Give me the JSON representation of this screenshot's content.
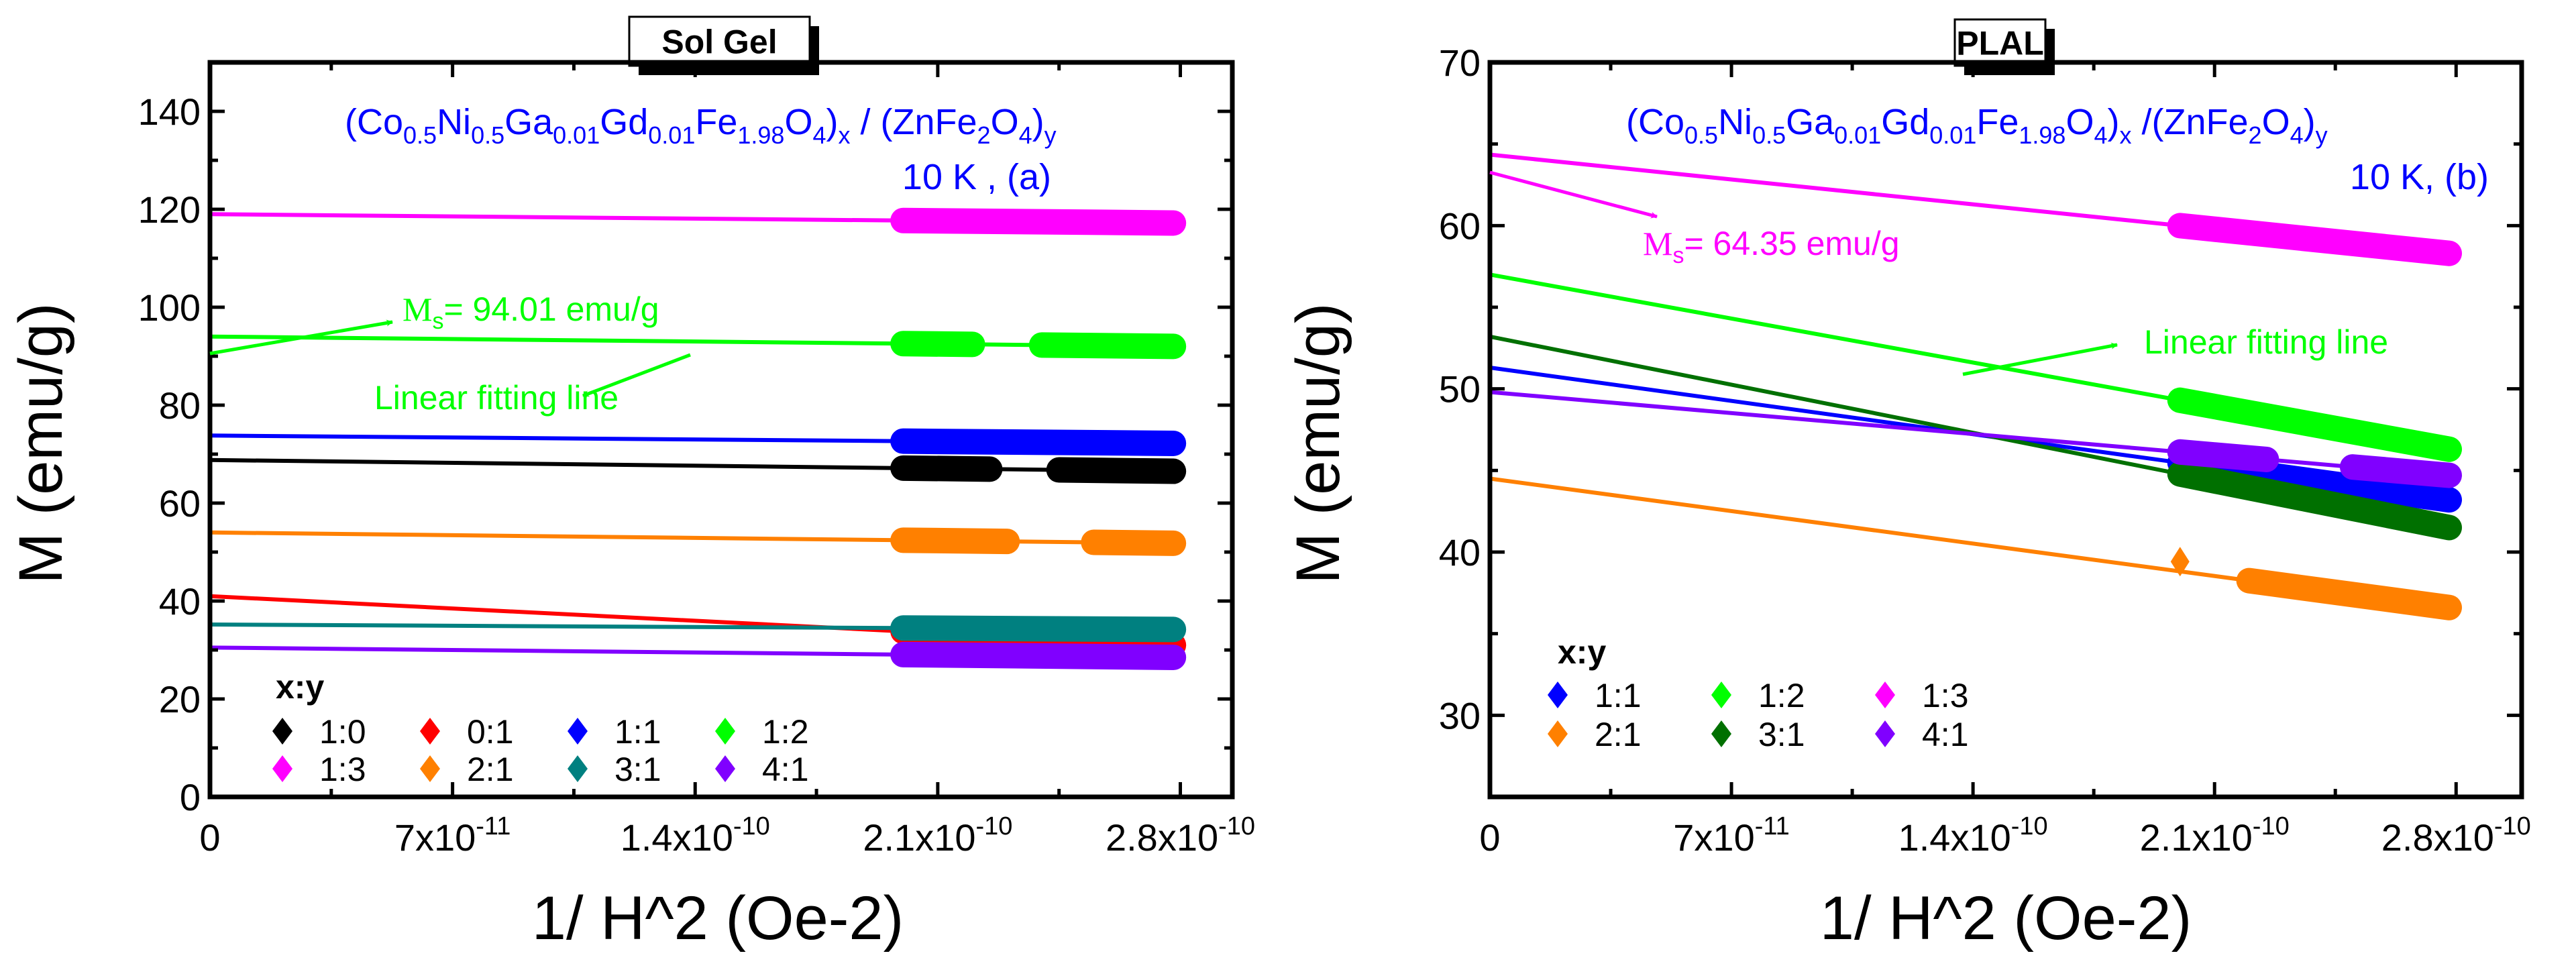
{
  "chart_data": [
    {
      "type": "line",
      "panel": "a",
      "title": "Sol Gel",
      "formula": [
        {
          "t": "(Co",
          "s": 0
        },
        {
          "t": "0.5",
          "s": 1
        },
        {
          "t": "Ni",
          "s": 0
        },
        {
          "t": "0.5",
          "s": 1
        },
        {
          "t": "Ga",
          "s": 0
        },
        {
          "t": "0.01",
          "s": 1
        },
        {
          "t": "Gd",
          "s": 0
        },
        {
          "t": "0.01",
          "s": 1
        },
        {
          "t": "Fe",
          "s": 0
        },
        {
          "t": "1.98",
          "s": 1
        },
        {
          "t": "O",
          "s": 0
        },
        {
          "t": "4",
          "s": 1
        },
        {
          "t": ")",
          "s": 0
        },
        {
          "t": "x",
          "s": 1
        },
        {
          "t": " / (ZnFe",
          "s": 0
        },
        {
          "t": "2",
          "s": 1
        },
        {
          "t": "O",
          "s": 0
        },
        {
          "t": "4",
          "s": 1
        },
        {
          "t": ")",
          "s": 0
        },
        {
          "t": "y",
          "s": 1
        }
      ],
      "condition": "10 K , (a)",
      "ms_annotation": {
        "prefix": "M",
        "sub": "s",
        "text": "= 94.01 emu/g",
        "color": "#00ff00"
      },
      "fit_annotation": {
        "text": "Linear fitting line",
        "color": "#00ff00"
      },
      "xlabel": "1/ H^2 (Oe-2)",
      "ylabel": "M (emu/g)",
      "xlim": [
        0,
        2.95e-10
      ],
      "ylim": [
        0,
        150
      ],
      "xticks": [
        {
          "v": 0,
          "label": "0"
        },
        {
          "v": 7e-11,
          "label": "7x10",
          "exp": "-11"
        },
        {
          "v": 1.4e-10,
          "label": "1.4x10",
          "exp": "-10"
        },
        {
          "v": 2.1e-10,
          "label": "2.1x10",
          "exp": "-10"
        },
        {
          "v": 2.8e-10,
          "label": "2.8x10",
          "exp": "-10"
        }
      ],
      "yticks": [
        0,
        20,
        40,
        60,
        80,
        100,
        120,
        140
      ],
      "legend_title": "x:y",
      "legend_columns": 4,
      "series": [
        {
          "name": "1:0",
          "color": "#000000",
          "intercept": 68.8,
          "end": 66.5,
          "bands": [
            [
              2e-10,
              2.25e-10
            ],
            [
              2.45e-10,
              2.78e-10
            ]
          ]
        },
        {
          "name": "0:1",
          "color": "#ff0000",
          "intercept": 41.0,
          "end": 31.0,
          "bands": [
            [
              2e-10,
              2.78e-10
            ]
          ]
        },
        {
          "name": "1:1",
          "color": "#0000ff",
          "intercept": 73.8,
          "end": 72.2,
          "bands": [
            [
              2e-10,
              2.78e-10
            ]
          ]
        },
        {
          "name": "1:2",
          "color": "#00ff00",
          "intercept": 94.01,
          "end": 92.0,
          "bands": [
            [
              2e-10,
              2.2e-10
            ],
            [
              2.4e-10,
              2.78e-10
            ]
          ]
        },
        {
          "name": "1:3",
          "color": "#ff00ff",
          "intercept": 119.0,
          "end": 117.2,
          "bands": [
            [
              2e-10,
              2.78e-10
            ]
          ]
        },
        {
          "name": "2:1",
          "color": "#ff8000",
          "intercept": 54.0,
          "end": 51.8,
          "bands": [
            [
              2e-10,
              2.3e-10
            ],
            [
              2.55e-10,
              2.78e-10
            ]
          ]
        },
        {
          "name": "3:1",
          "color": "#008080",
          "intercept": 35.2,
          "end": 34.2,
          "bands": [
            [
              2e-10,
              2.78e-10
            ]
          ]
        },
        {
          "name": "4:1",
          "color": "#8000ff",
          "intercept": 30.5,
          "end": 28.5,
          "bands": [
            [
              2e-10,
              2.78e-10
            ]
          ]
        }
      ]
    },
    {
      "type": "line",
      "panel": "b",
      "title": "PLAL",
      "formula": [
        {
          "t": "(Co",
          "s": 0
        },
        {
          "t": "0.5",
          "s": 1
        },
        {
          "t": "Ni",
          "s": 0
        },
        {
          "t": "0.5",
          "s": 1
        },
        {
          "t": "Ga",
          "s": 0
        },
        {
          "t": "0.01",
          "s": 1
        },
        {
          "t": "Gd",
          "s": 0
        },
        {
          "t": "0.01",
          "s": 1
        },
        {
          "t": "Fe",
          "s": 0
        },
        {
          "t": "1.98",
          "s": 1
        },
        {
          "t": "O",
          "s": 0
        },
        {
          "t": "4",
          "s": 1
        },
        {
          "t": ")",
          "s": 0
        },
        {
          "t": "x",
          "s": 1
        },
        {
          "t": " /(ZnFe",
          "s": 0
        },
        {
          "t": "2",
          "s": 1
        },
        {
          "t": "O",
          "s": 0
        },
        {
          "t": "4",
          "s": 1
        },
        {
          "t": ")",
          "s": 0
        },
        {
          "t": "y",
          "s": 1
        }
      ],
      "condition": "10 K, (b)",
      "ms_annotation": {
        "prefix": "M",
        "sub": "s",
        "text": "= 64.35 emu/g",
        "color": "#ff00ff"
      },
      "fit_annotation": {
        "text": "Linear fitting line",
        "color": "#00ff00"
      },
      "xlabel": "1/ H^2 (Oe-2)",
      "ylabel": "M (emu/g)",
      "xlim": [
        0,
        2.99e-10
      ],
      "ylim": [
        25,
        70
      ],
      "xticks": [
        {
          "v": 0,
          "label": "0"
        },
        {
          "v": 7e-11,
          "label": "7x10",
          "exp": "-11"
        },
        {
          "v": 1.4e-10,
          "label": "1.4x10",
          "exp": "-10"
        },
        {
          "v": 2.1e-10,
          "label": "2.1x10",
          "exp": "-10"
        },
        {
          "v": 2.8e-10,
          "label": "2.8x10",
          "exp": "-10"
        }
      ],
      "yticks": [
        30,
        40,
        50,
        60,
        70
      ],
      "legend_title": "x:y",
      "legend_columns": 3,
      "series": [
        {
          "name": "1:1",
          "color": "#0000ff",
          "intercept": 51.3,
          "end": 43.2,
          "bands": [
            [
              2e-10,
              2.78e-10
            ]
          ]
        },
        {
          "name": "1:2",
          "color": "#00ff00",
          "intercept": 57.0,
          "end": 46.3,
          "bands": [
            [
              2e-10,
              2.78e-10
            ]
          ]
        },
        {
          "name": "1:3",
          "color": "#ff00ff",
          "intercept": 64.35,
          "end": 58.3,
          "bands": [
            [
              2e-10,
              2.78e-10
            ]
          ]
        },
        {
          "name": "2:1",
          "color": "#ff8000",
          "intercept": 44.5,
          "end": 36.6,
          "bands": [
            [
              2e-10,
              2e-10
            ],
            [
              2.2e-10,
              2.78e-10
            ]
          ]
        },
        {
          "name": "3:1",
          "color": "#007000",
          "intercept": 53.2,
          "end": 41.5,
          "bands": [
            [
              2e-10,
              2.78e-10
            ]
          ]
        },
        {
          "name": "4:1",
          "color": "#8000ff",
          "intercept": 49.8,
          "end": 44.7,
          "bands": [
            [
              2e-10,
              2.25e-10
            ],
            [
              2.5e-10,
              2.78e-10
            ]
          ]
        }
      ]
    }
  ]
}
